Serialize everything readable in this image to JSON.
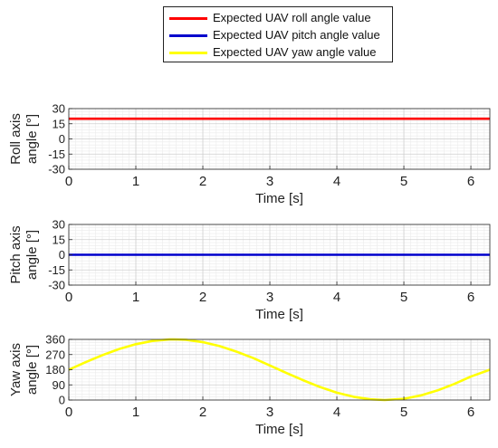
{
  "legend": [
    {
      "label": "Expected UAV roll angle value",
      "color": "#ff0000"
    },
    {
      "label": "Expected UAV pitch angle value",
      "color": "#0000cc"
    },
    {
      "label": "Expected UAV yaw angle value",
      "color": "#ffff00"
    }
  ],
  "chart_data": [
    {
      "type": "line",
      "ylabel": [
        "Roll axis",
        "angle [°]"
      ],
      "xlabel": "Time [s]",
      "xlim": [
        0,
        6.283
      ],
      "ylim": [
        -30,
        30
      ],
      "yticks": [
        30,
        15,
        0,
        -15,
        -30
      ],
      "xticks": [
        0,
        1,
        2,
        3,
        4,
        5,
        6
      ],
      "grid": true,
      "series": [
        {
          "name": "Expected UAV roll angle value",
          "color": "#ff0000",
          "x": [
            0,
            6.283
          ],
          "y": [
            20,
            20
          ]
        }
      ]
    },
    {
      "type": "line",
      "ylabel": [
        "Pitch axis",
        "angle [°]"
      ],
      "xlabel": "Time [s]",
      "xlim": [
        0,
        6.283
      ],
      "ylim": [
        -30,
        30
      ],
      "yticks": [
        30,
        15,
        0,
        -15,
        -30
      ],
      "xticks": [
        0,
        1,
        2,
        3,
        4,
        5,
        6
      ],
      "grid": true,
      "series": [
        {
          "name": "Expected UAV pitch angle value",
          "color": "#0000cc",
          "x": [
            0,
            6.283
          ],
          "y": [
            0,
            0
          ]
        }
      ]
    },
    {
      "type": "line",
      "ylabel": [
        "Yaw axis",
        "angle [°]"
      ],
      "xlabel": "Time [s]",
      "xlim": [
        0,
        6.283
      ],
      "ylim": [
        0,
        360
      ],
      "yticks": [
        360,
        270,
        180,
        90,
        0
      ],
      "xticks": [
        0,
        1,
        2,
        3,
        4,
        5,
        6
      ],
      "grid": true,
      "series": [
        {
          "name": "Expected UAV yaw angle value",
          "color": "#ffff00",
          "x": [
            0,
            0.25,
            0.5,
            0.75,
            1.0,
            1.25,
            1.5,
            1.5708,
            1.75,
            2.0,
            2.25,
            2.5,
            2.75,
            3.0,
            3.25,
            3.5,
            3.75,
            4.0,
            4.25,
            4.5,
            4.7124,
            5.0,
            5.25,
            5.5,
            5.75,
            6.0,
            6.283
          ],
          "y": [
            180,
            224.5,
            266.3,
            302.7,
            331.5,
            350.8,
            359.6,
            360,
            357.5,
            343.7,
            320.4,
            287.7,
            249.4,
            205.4,
            160.5,
            116.9,
            77.1,
            43.8,
            19.3,
            4.4,
            0,
            7.4,
            27.1,
            56.9,
            95.0,
            139.3,
            180
          ]
        }
      ]
    }
  ]
}
